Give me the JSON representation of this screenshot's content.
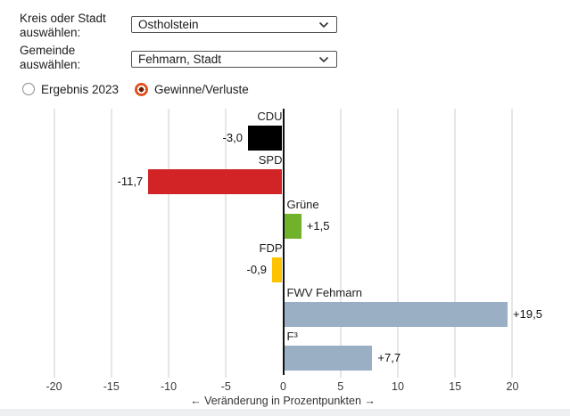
{
  "controls": {
    "kreis_label_line1": "Kreis oder Stadt",
    "kreis_label_line2": "auswählen:",
    "kreis_value": "Ostholstein",
    "gemeinde_label_line1": "Gemeinde",
    "gemeinde_label_line2": "auswählen:",
    "gemeinde_value": "Fehmarn, Stadt",
    "radio_options": [
      {
        "label": "Ergebnis 2023",
        "selected": false
      },
      {
        "label": "Gewinne/Verluste",
        "selected": true
      }
    ],
    "radio_selected_ring_color": "#e2501e",
    "radio_selected_dot_color": "#6b1f02",
    "radio_unselected_ring_color": "#8a8a94"
  },
  "chart_data": {
    "type": "bar",
    "orientation": "horizontal",
    "title": "",
    "xlabel": "← Veränderung in Prozentpunkten →",
    "unit": "Prozentpunkte",
    "xlim": [
      -21.5,
      25
    ],
    "xticks": [
      -20,
      -15,
      -10,
      -5,
      0,
      5,
      10,
      15,
      20
    ],
    "grid": true,
    "categories": [
      "CDU",
      "SPD",
      "Grüne",
      "FDP",
      "FWV Fehmarn",
      "F³"
    ],
    "values": [
      -3.0,
      -11.7,
      1.5,
      -0.9,
      19.5,
      7.7
    ],
    "series": [
      {
        "label": "CDU",
        "value": -3.0,
        "display": "-3,0",
        "color": "#000000"
      },
      {
        "label": "SPD",
        "value": -11.7,
        "display": "-11,7",
        "color": "#d22327"
      },
      {
        "label": "Grüne",
        "value": 1.5,
        "display": "+1,5",
        "color": "#70b32b"
      },
      {
        "label": "FDP",
        "value": -0.9,
        "display": "-0,9",
        "color": "#fdc301"
      },
      {
        "label": "FWV Fehmarn",
        "value": 19.5,
        "display": "+19,5",
        "color": "#9aafc4"
      },
      {
        "label": "F³",
        "value": 7.7,
        "display": "+7,7",
        "color": "#9aafc4"
      }
    ]
  }
}
